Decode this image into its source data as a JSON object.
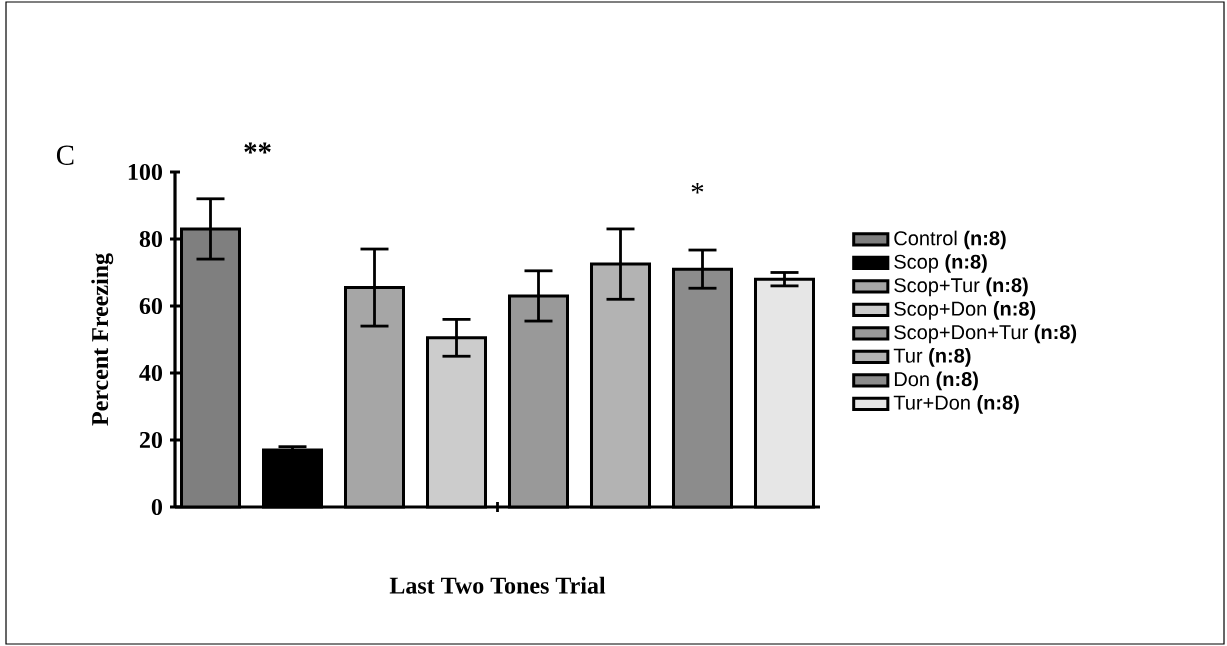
{
  "chart_data": {
    "type": "bar",
    "ylabel": "Percent Freezing",
    "xlabel": "Last Two Tones Trial",
    "categories": [
      null
    ],
    "series": [
      {
        "name": "Control **(n:8)**",
        "color": "#7f7f7f",
        "values": [
          83
        ],
        "errors": [
          9
        ]
      },
      {
        "name": "Scop **(n:8)**",
        "color": "#000000",
        "values": [
          17
        ],
        "errors": [
          1
        ]
      },
      {
        "name": "Scop+Tur **(n:8)**",
        "color": "#a6a6a6",
        "values": [
          65.5
        ],
        "errors": [
          11.5
        ]
      },
      {
        "name": "Scop+Don **(n:8)**",
        "color": "#cccccc",
        "values": [
          50.5
        ],
        "errors": [
          5.5
        ]
      },
      {
        "name": "Scop+Don+Tur **(n:8)**",
        "color": "#999999",
        "values": [
          63
        ],
        "errors": [
          7.5
        ]
      },
      {
        "name": "Tur **(n:8)**",
        "color": "#b3b3b3",
        "values": [
          72.5
        ],
        "errors": [
          10.5
        ]
      },
      {
        "name": "Don **(n:8)**",
        "color": "#8c8c8c",
        "values": [
          71
        ],
        "errors": [
          5.7
        ]
      },
      {
        "name": "Tur+Don **(n:8)**",
        "color": "#e6e6e6",
        "values": [
          68
        ],
        "errors": [
          2
        ]
      }
    ],
    "ylim": [
      0,
      100
    ],
    "yticks": [
      0,
      20,
      40,
      60,
      80,
      100
    ],
    "legend": "right",
    "annotations": [
      "C",
      "**",
      "*"
    ]
  }
}
